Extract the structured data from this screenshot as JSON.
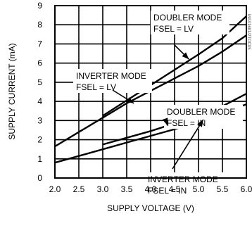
{
  "chart_data": {
    "type": "line",
    "xlabel": "SUPPLY VOLTAGE (V)",
    "ylabel": "SUPPLY CURRENT (mA)",
    "xlim": [
      2.0,
      6.0
    ],
    "ylim": [
      0,
      9
    ],
    "x_ticks": [
      "2.0",
      "2.5",
      "3.0",
      "3.5",
      "4.0",
      "4.5",
      "5.0",
      "5.5",
      "6.0"
    ],
    "y_ticks": [
      "0",
      "1",
      "2",
      "3",
      "4",
      "5",
      "6",
      "7",
      "8",
      "9"
    ],
    "grid": true,
    "side_note": "MAX1681/2TOC05",
    "series": [
      {
        "name": "DOUBLER MODE FSEL = LV",
        "x": [
          3.0,
          3.5,
          4.0,
          4.5,
          5.0,
          5.5,
          6.0
        ],
        "y": [
          3.25,
          4.05,
          4.85,
          5.65,
          6.45,
          7.3,
          8.45
        ],
        "color": "#000000"
      },
      {
        "name": "INVERTER MODE FSEL = LV",
        "x": [
          2.0,
          2.5,
          3.0,
          3.5,
          4.0,
          4.5,
          5.0,
          5.5,
          6.0
        ],
        "y": [
          1.65,
          2.4,
          3.15,
          3.9,
          4.55,
          5.2,
          5.85,
          6.6,
          7.45
        ],
        "color": "#000000"
      },
      {
        "name": "DOUBLER MODE FSEL = IN",
        "x": [
          3.0,
          3.5,
          4.0,
          4.5,
          5.0,
          5.5,
          6.0
        ],
        "y": [
          1.75,
          2.1,
          2.45,
          2.85,
          3.25,
          3.75,
          4.4
        ],
        "color": "#000000"
      },
      {
        "name": "INVERTER MODE FSEL = IN",
        "x": [
          2.0,
          2.5,
          3.0,
          3.5,
          4.0,
          4.5,
          5.0,
          5.5,
          6.0
        ],
        "y": [
          0.8,
          1.15,
          1.5,
          1.85,
          2.2,
          2.55,
          2.95,
          3.4,
          3.85
        ],
        "color": "#000000"
      }
    ],
    "annotations": [
      {
        "lines": [
          "DOUBLER MODE",
          "FSEL = LV"
        ],
        "arrow_to": [
          4.8,
          6.2
        ]
      },
      {
        "lines": [
          "INVERTER MODE",
          "FSEL = LV"
        ],
        "arrow_to": [
          3.65,
          3.9
        ]
      },
      {
        "lines": [
          "DOUBLER MODE",
          "FSEL = IN"
        ],
        "arrow_to": [
          4.35,
          2.75
        ]
      },
      {
        "lines": [
          "INVERTER MODE",
          "FSEL = IN"
        ],
        "arrow_to": [
          5.1,
          3.05
        ]
      }
    ]
  }
}
